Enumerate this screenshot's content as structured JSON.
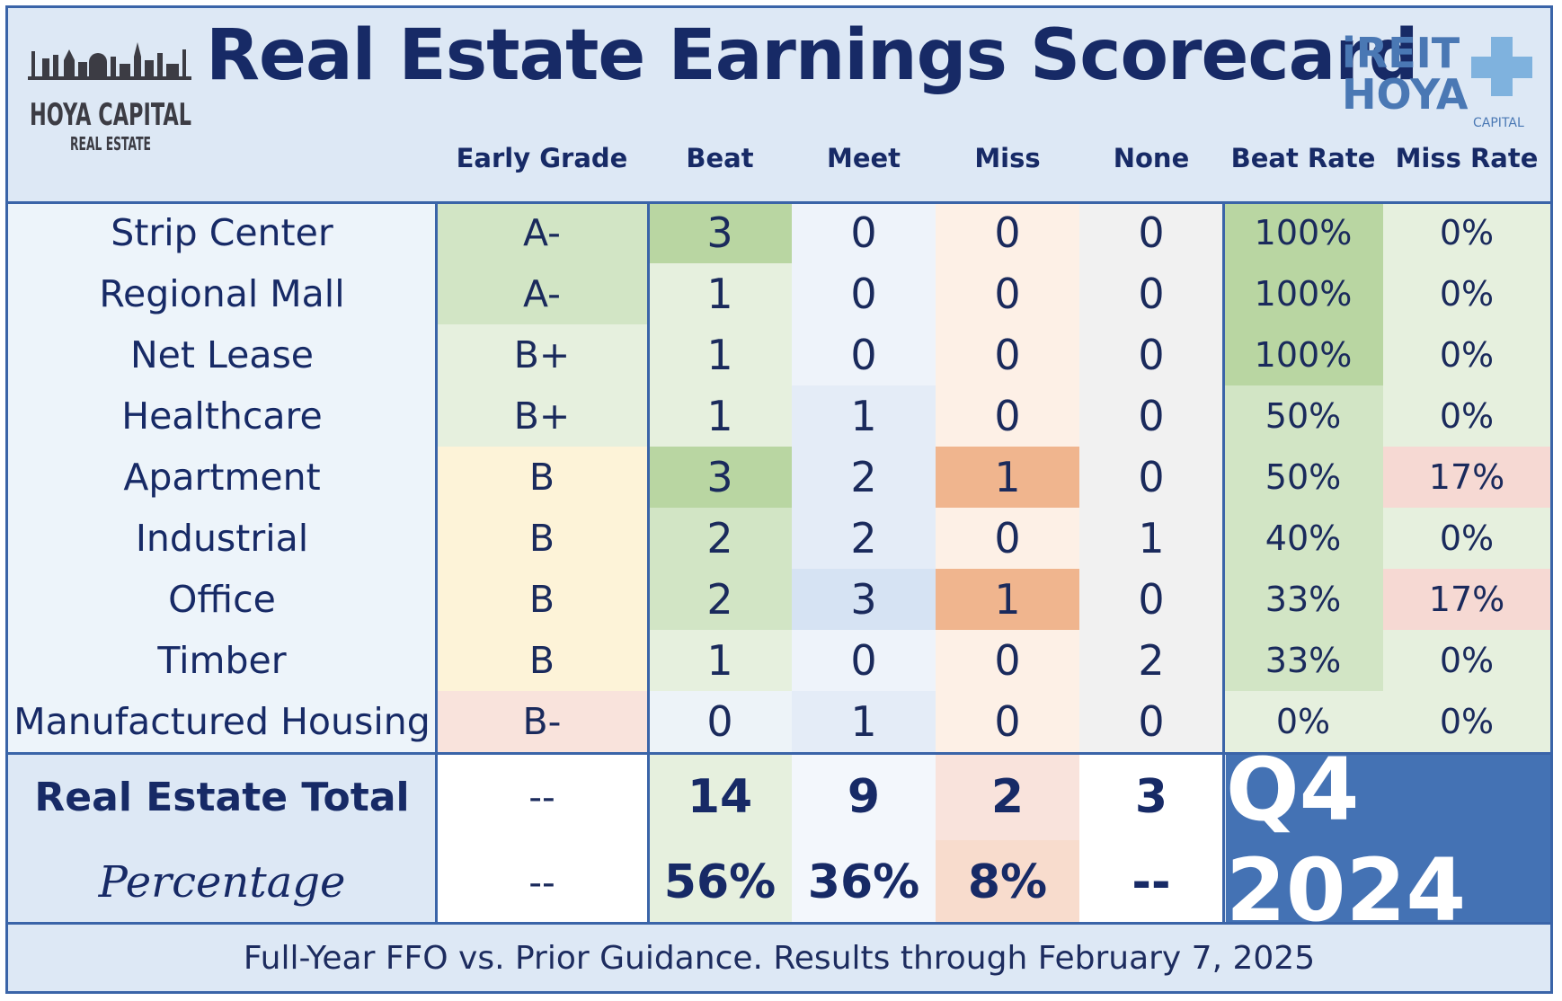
{
  "title": "Real Estate Earnings Scorecard",
  "logo_left": {
    "line1": "HOYA CAPITAL",
    "line2": "REAL ESTATE"
  },
  "logo_right": {
    "line1": "iREIT",
    "line2": "HOYA",
    "line3": "CAPITAL"
  },
  "footer": "Full-Year FFO vs. Prior Guidance. Results through February 7, 2025",
  "period_badge": "Q4 2024",
  "colors": {
    "navy": "#172a66",
    "border": "#3a64a8",
    "header_bg": "#dde8f5",
    "badge_bg": "#4472b4",
    "green_dark": "#b9d6a2",
    "green_mid": "#d2e5c5",
    "green_light": "#e6f0de",
    "yellow": "#fdf3d8",
    "pink": "#f9e3dc",
    "orange": "#f0b58e",
    "blue_light": "#e4ecf7"
  },
  "chart_data": {
    "type": "table",
    "title": "Real Estate Earnings Scorecard",
    "columns": [
      "Early Grade",
      "Beat",
      "Meet",
      "Miss",
      "None",
      "Beat Rate",
      "Miss Rate"
    ],
    "rows": [
      {
        "sector": "Strip Center",
        "grade": "A-",
        "beat": 3,
        "meet": 0,
        "miss": 0,
        "none": 0,
        "beat_rate": "100%",
        "miss_rate": "0%"
      },
      {
        "sector": "Regional Mall",
        "grade": "A-",
        "beat": 1,
        "meet": 0,
        "miss": 0,
        "none": 0,
        "beat_rate": "100%",
        "miss_rate": "0%"
      },
      {
        "sector": "Net Lease",
        "grade": "B+",
        "beat": 1,
        "meet": 0,
        "miss": 0,
        "none": 0,
        "beat_rate": "100%",
        "miss_rate": "0%"
      },
      {
        "sector": "Healthcare",
        "grade": "B+",
        "beat": 1,
        "meet": 1,
        "miss": 0,
        "none": 0,
        "beat_rate": "50%",
        "miss_rate": "0%"
      },
      {
        "sector": "Apartment",
        "grade": "B",
        "beat": 3,
        "meet": 2,
        "miss": 1,
        "none": 0,
        "beat_rate": "50%",
        "miss_rate": "17%"
      },
      {
        "sector": "Industrial",
        "grade": "B",
        "beat": 2,
        "meet": 2,
        "miss": 0,
        "none": 1,
        "beat_rate": "40%",
        "miss_rate": "0%"
      },
      {
        "sector": "Office",
        "grade": "B",
        "beat": 2,
        "meet": 3,
        "miss": 1,
        "none": 0,
        "beat_rate": "33%",
        "miss_rate": "17%"
      },
      {
        "sector": "Timber",
        "grade": "B",
        "beat": 1,
        "meet": 0,
        "miss": 0,
        "none": 2,
        "beat_rate": "33%",
        "miss_rate": "0%"
      },
      {
        "sector": "Manufactured Housing",
        "grade": "B-",
        "beat": 0,
        "meet": 1,
        "miss": 0,
        "none": 0,
        "beat_rate": "0%",
        "miss_rate": "0%"
      }
    ],
    "total": {
      "label": "Real Estate Total",
      "grade": "--",
      "beat": "14",
      "meet": "9",
      "miss": "2",
      "none": "3"
    },
    "percentage": {
      "label": "Percentage",
      "grade": "--",
      "beat": "56%",
      "meet": "36%",
      "miss": "8%",
      "none": "--"
    }
  }
}
